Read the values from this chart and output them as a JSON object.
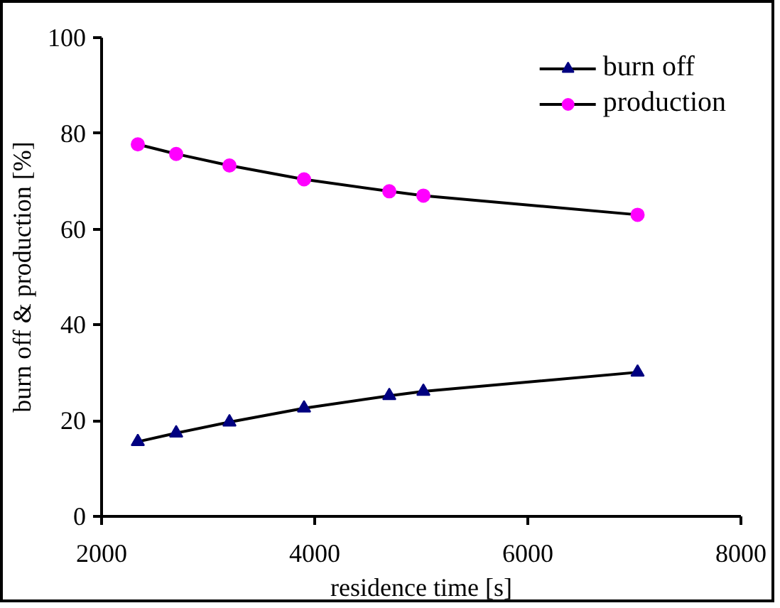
{
  "chart_data": {
    "type": "line",
    "xlabel": "residence time [s]",
    "ylabel": "burn off & production [%]",
    "xlim": [
      2000,
      8000
    ],
    "xticks": [
      2000,
      4000,
      6000,
      8000
    ],
    "ylim": [
      0,
      100
    ],
    "yticks": [
      0,
      20,
      40,
      60,
      80,
      100
    ],
    "grid": false,
    "legend": "top right",
    "line_style": "solid",
    "series": [
      {
        "name": "burn off",
        "color": "#000080",
        "marker": "triangle",
        "x": [
          2340,
          2700,
          3200,
          3900,
          4700,
          5020,
          7030
        ],
        "values": [
          15.6,
          17.4,
          19.7,
          22.6,
          25.2,
          26.1,
          30.1
        ]
      },
      {
        "name": "production",
        "color": "#ff00ff",
        "marker": "circle",
        "x": [
          2340,
          2700,
          3200,
          3900,
          4700,
          5020,
          7030
        ],
        "values": [
          77.7,
          75.7,
          73.3,
          70.4,
          67.9,
          67.0,
          63.0
        ]
      }
    ]
  }
}
